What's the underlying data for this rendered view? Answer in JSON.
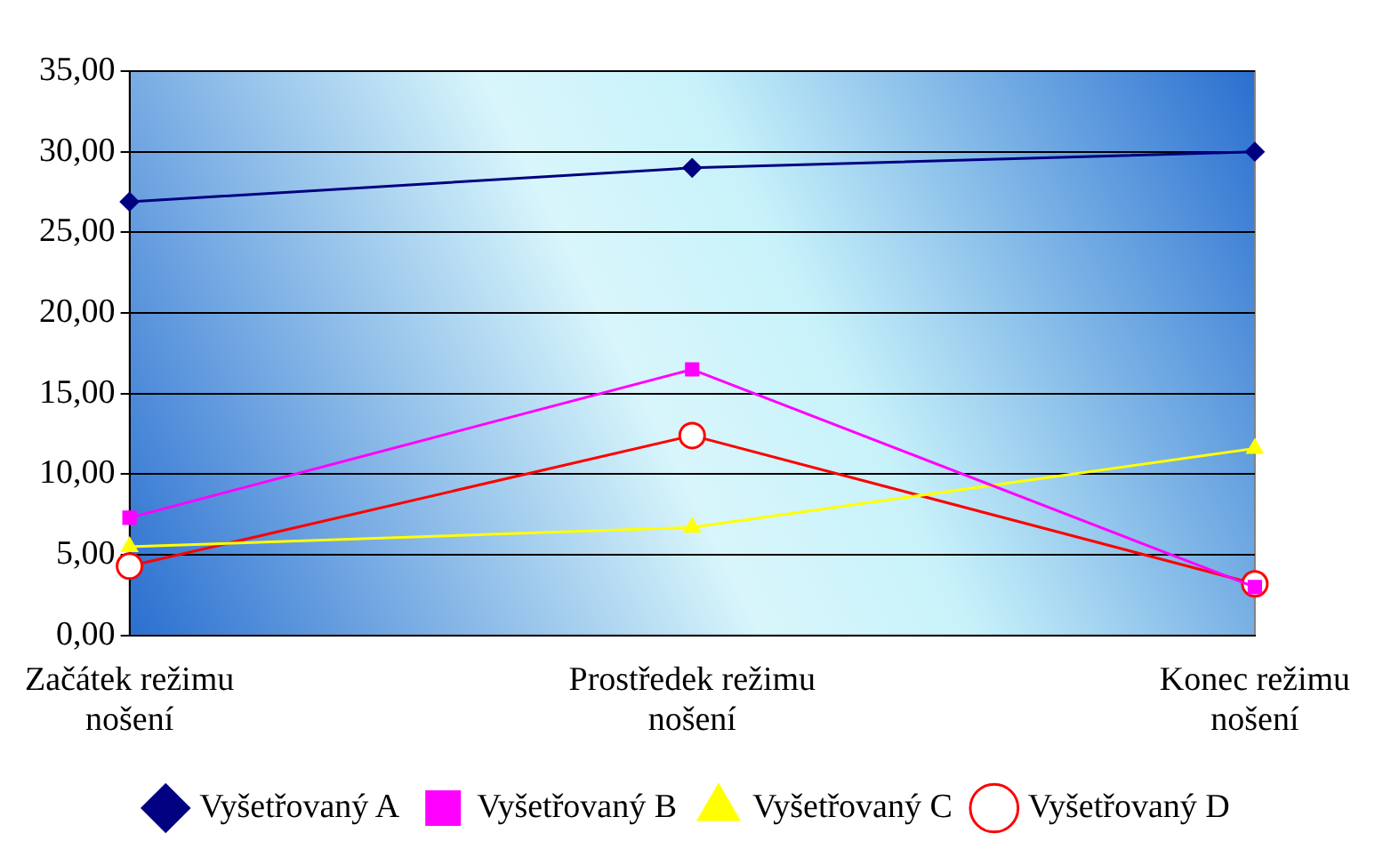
{
  "chart_data": {
    "type": "line",
    "categories": [
      "Začátek režimu nošení",
      "Prostředek režimu nošení",
      "Konec režimu nošení"
    ],
    "series": [
      {
        "name": "Vyšetřovaný A",
        "color": "#000080",
        "marker": "diamond",
        "values": [
          26.9,
          29.0,
          30.0
        ]
      },
      {
        "name": "Vyšetřovaný B",
        "color": "#ff00ff",
        "marker": "square",
        "values": [
          7.3,
          16.5,
          3.0
        ]
      },
      {
        "name": "Vyšetřovaný C",
        "color": "#ffff00",
        "marker": "triangle",
        "values": [
          5.5,
          6.7,
          11.6
        ]
      },
      {
        "name": "Vyšetřovaný D",
        "color": "#ff0000",
        "marker": "circle",
        "values": [
          4.3,
          12.4,
          3.2
        ]
      }
    ],
    "ylim": [
      0,
      35
    ],
    "yticks": [
      {
        "value": 0,
        "label": "0,00"
      },
      {
        "value": 5,
        "label": "5,00"
      },
      {
        "value": 10,
        "label": "10,00"
      },
      {
        "value": 15,
        "label": "15,00"
      },
      {
        "value": 20,
        "label": "20,00"
      },
      {
        "value": 25,
        "label": "25,00"
      },
      {
        "value": 30,
        "label": "30,00"
      },
      {
        "value": 35,
        "label": "35,00"
      }
    ],
    "grid": "y",
    "legend": "bottom",
    "line_style": "solid"
  }
}
